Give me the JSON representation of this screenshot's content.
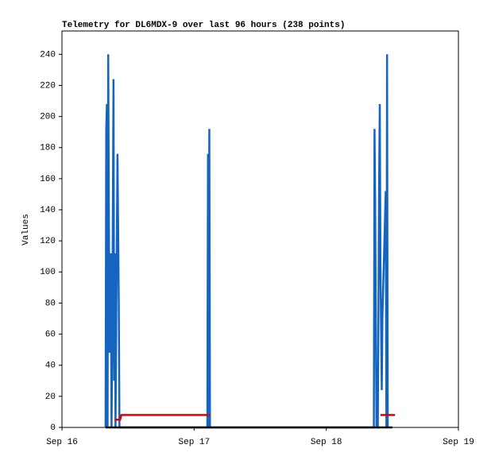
{
  "chart_data": {
    "type": "line",
    "title": "Telemetry for DL6MDX-9 over last 96 hours (238 points)",
    "y_label": "Values",
    "xlim": [
      16,
      19
    ],
    "xticks": [
      {
        "value": 16,
        "label": "Sep 16"
      },
      {
        "value": 17,
        "label": "Sep 17"
      },
      {
        "value": 18,
        "label": "Sep 18"
      },
      {
        "value": 19,
        "label": "Sep 19"
      }
    ],
    "ylim": [
      0,
      255
    ],
    "yticks": [
      0,
      20,
      40,
      60,
      80,
      100,
      120,
      140,
      160,
      180,
      200,
      220,
      240
    ],
    "series": [
      {
        "color": "#1565c0",
        "x": [
          16.33,
          16.335,
          16.34,
          16.345,
          16.35,
          16.355,
          16.36,
          16.37,
          16.375,
          16.38,
          16.39,
          16.395,
          16.4,
          16.405,
          16.42,
          16.43,
          16.435,
          17.1,
          17.105,
          17.11,
          17.115,
          17.12,
          18.36,
          18.365,
          18.37,
          18.375,
          18.38,
          18.39,
          18.4,
          18.405,
          18.41,
          18.42,
          18.425,
          18.43,
          18.44,
          18.445,
          18.45,
          18.455,
          18.46,
          18.465
        ],
        "values": [
          0,
          192,
          208,
          0,
          240,
          136,
          48,
          112,
          0,
          48,
          224,
          30,
          112,
          0,
          176,
          80,
          0,
          0,
          176,
          0,
          192,
          0,
          0,
          192,
          144,
          72,
          0,
          0,
          160,
          208,
          104,
          24,
          72,
          88,
          120,
          136,
          152,
          0,
          240,
          0
        ]
      },
      {
        "color": "#000000",
        "x": [
          16.33,
          18.5
        ],
        "values": [
          0,
          0
        ]
      },
      {
        "color": "#e00000",
        "x": [
          16.4,
          16.44,
          16.45,
          17.12,
          17.5,
          18.41,
          18.52
        ],
        "values": [
          5,
          5,
          8,
          8,
          null,
          8,
          8
        ]
      }
    ]
  }
}
